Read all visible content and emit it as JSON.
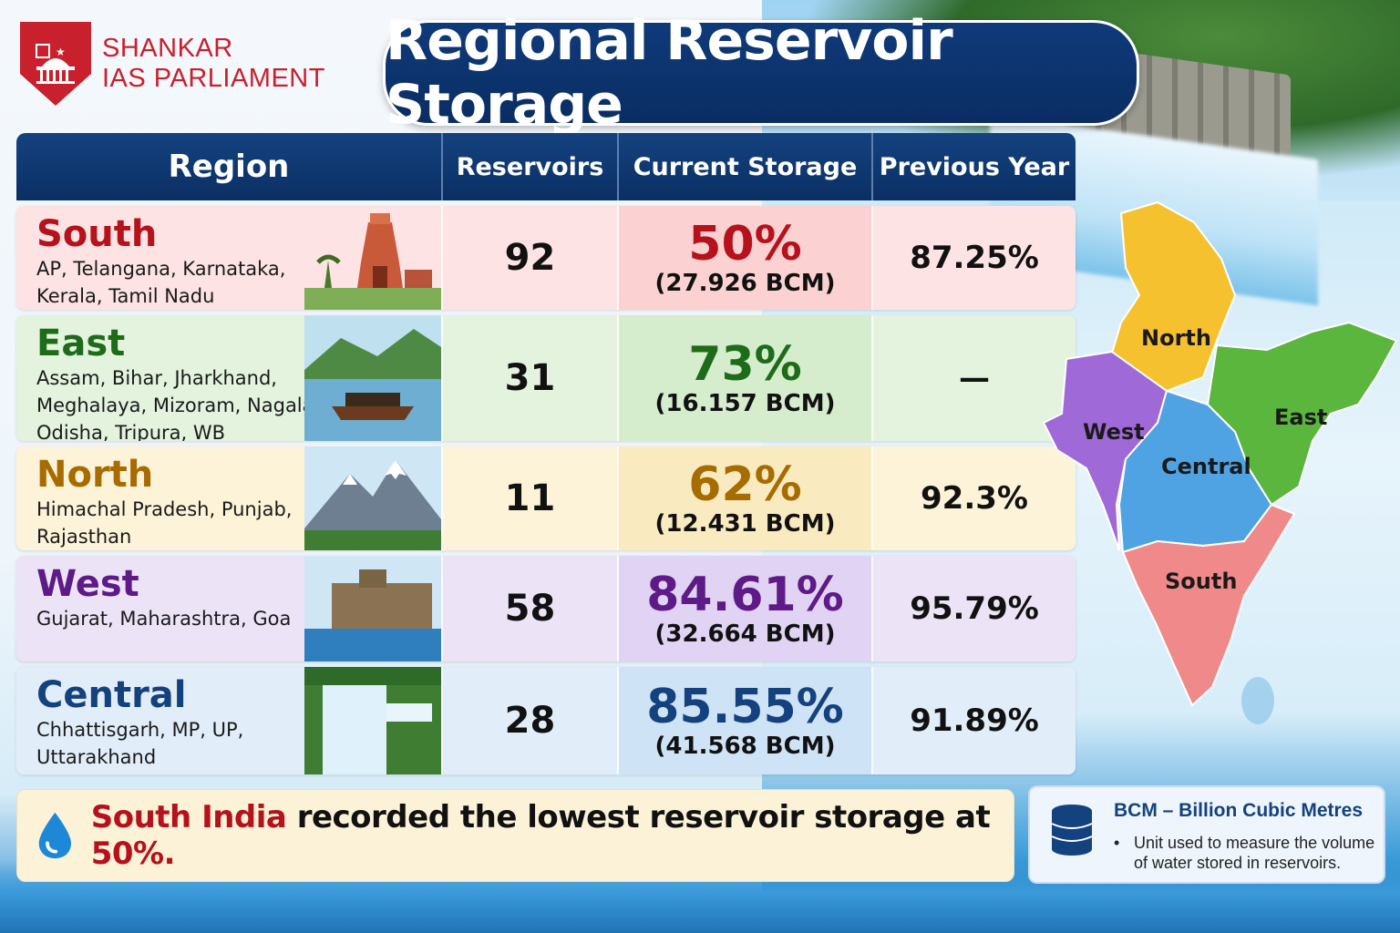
{
  "brand": {
    "line1": "SHANKAR",
    "line2": "IAS PARLIAMENT"
  },
  "title": "Regional Reservoir Storage",
  "table": {
    "headers": {
      "region": "Region",
      "reservoirs": "Reservoirs",
      "current": "Current Storage",
      "previous": "Previous Year"
    },
    "rows": [
      {
        "region": "South",
        "states": "AP, Telangana, Karnataka, Kerala, Tamil Nadu",
        "reservoirs": "92",
        "current_pct": "50%",
        "current_bcm": "(27.926 BCM)",
        "previous": "87.25%",
        "color": "#b5121b"
      },
      {
        "region": "East",
        "states": "Assam, Bihar, Jharkhand, Meghalaya, Mizoram, Nagaland, Odisha, Tripura, WB",
        "reservoirs": "31",
        "current_pct": "73%",
        "current_bcm": "(16.157 BCM)",
        "previous": "—",
        "color": "#1e6b1a"
      },
      {
        "region": "North",
        "states": "Himachal Pradesh, Punjab, Rajasthan",
        "reservoirs": "11",
        "current_pct": "62%",
        "current_bcm": "(12.431 BCM)",
        "previous": "92.3%",
        "color": "#a66c00"
      },
      {
        "region": "West",
        "states": "Gujarat, Maharashtra, Goa",
        "reservoirs": "58",
        "current_pct": "84.61%",
        "current_bcm": "(32.664 BCM)",
        "previous": "95.79%",
        "color": "#5e1a87"
      },
      {
        "region": "Central",
        "states": "Chhattisgarh, MP, UP, Uttarakhand",
        "reservoirs": "28",
        "current_pct": "85.55%",
        "current_bcm": "(41.568 BCM)",
        "previous": "91.89%",
        "color": "#14427f"
      }
    ]
  },
  "map": {
    "labels": {
      "north": "North",
      "east": "East",
      "west": "West",
      "central": "Central",
      "south": "South"
    },
    "colors": {
      "north": "#f6c12f",
      "east": "#5ab63c",
      "west": "#a069d8",
      "central": "#4fa3e3",
      "south": "#f08a8a"
    }
  },
  "note": {
    "highlight": "South India",
    "middle": " recorded the lowest reservoir storage at ",
    "value": "50%."
  },
  "legend": {
    "title": "BCM – Billion Cubic Metres",
    "description": "Unit used to measure the volume of water stored in reservoirs."
  },
  "icons": {
    "logo": "parliament-shield-icon",
    "drop": "water-drop-icon",
    "database": "database-icon"
  }
}
